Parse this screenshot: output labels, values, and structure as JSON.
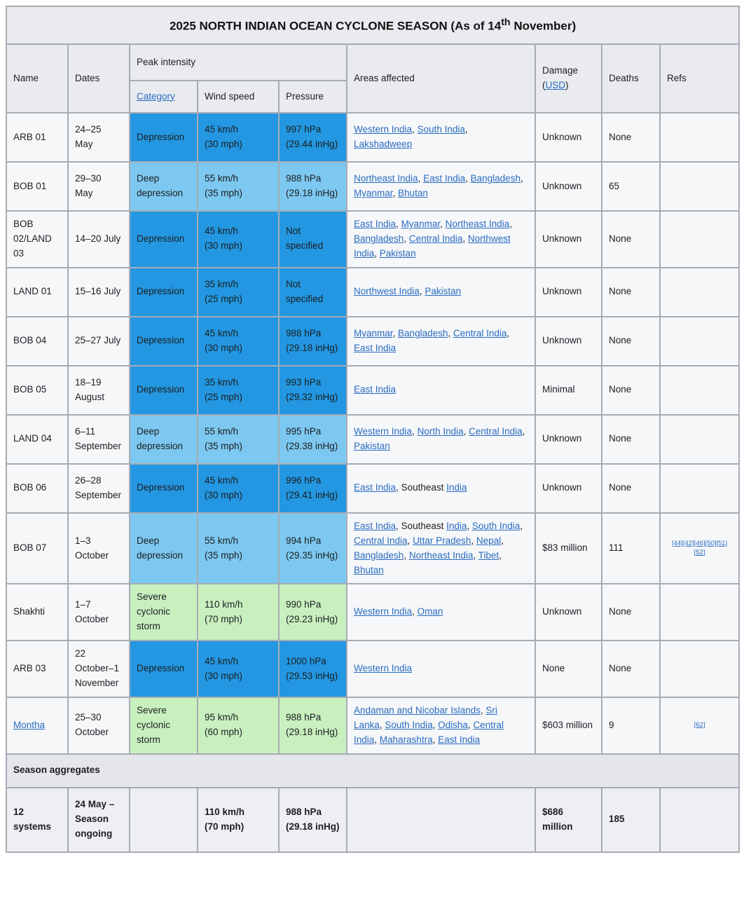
{
  "title": {
    "pre": "2025 NORTH INDIAN OCEAN CYCLONE SEASON (As of 14",
    "sup": "th",
    "post": " November)"
  },
  "header": {
    "name": "Name",
    "dates": "Dates",
    "peak_intensity": "Peak intensity",
    "category": "Category",
    "wind_speed": "Wind speed",
    "pressure": "Pressure",
    "areas": "Areas affected",
    "damage": "Damage",
    "damage_open": "(",
    "usd": "USD",
    "damage_close": ")",
    "deaths": "Deaths",
    "refs": "Refs"
  },
  "colors": {
    "depression": "#2397e1",
    "deep_depression": "#7dc8f0",
    "severe_cyclonic_storm": "#c8f0bf",
    "link": "#2a6cc0",
    "header_bg": "#e9ebef",
    "body_bg": "#f6f7f9",
    "border": "#a7acb4"
  },
  "rows": [
    {
      "name": "ARB 01",
      "name_link": false,
      "dates": "24–25\nMay",
      "category": "Depression",
      "intensity": "depression",
      "wind": "45 km/h\n(30 mph)",
      "pressure": "997 hPa\n(29.44 inHg)",
      "areas": [
        [
          [
            "Western India",
            true
          ]
        ],
        [
          [
            "South India",
            true
          ]
        ],
        [
          [
            "Lakshadweep",
            true
          ]
        ]
      ],
      "damage": "Unknown",
      "deaths": "None",
      "refs": []
    },
    {
      "name": "BOB 01",
      "name_link": false,
      "dates": "29–30\nMay",
      "category": "Deep depression",
      "intensity": "deep_depression",
      "wind": "55 km/h\n(35 mph)",
      "pressure": "988 hPa\n(29.18 inHg)",
      "areas": [
        [
          [
            "Northeast India",
            true
          ]
        ],
        [
          [
            "East India",
            true
          ]
        ],
        [
          [
            "Bangladesh",
            true
          ]
        ],
        [
          [
            "Myanmar",
            true
          ]
        ],
        [
          [
            "Bhutan",
            true
          ]
        ]
      ],
      "damage": "Unknown",
      "deaths": "65",
      "refs": []
    },
    {
      "name": "BOB 02/LAND 03",
      "name_link": false,
      "dates": "14–20 July",
      "category": "Depression",
      "intensity": "depression",
      "wind": "45 km/h\n(30 mph)",
      "pressure": "Not\nspecified",
      "areas": [
        [
          [
            "East India",
            true
          ]
        ],
        [
          [
            "Myanmar",
            true
          ]
        ],
        [
          [
            "Northeast India",
            true
          ]
        ],
        [
          [
            "Bangladesh",
            true
          ]
        ],
        [
          [
            "Central India",
            true
          ]
        ],
        [
          [
            "Northwest India",
            true
          ]
        ],
        [
          [
            "Pakistan",
            true
          ]
        ]
      ],
      "damage": "Unknown",
      "deaths": "None",
      "refs": []
    },
    {
      "name": "LAND 01",
      "name_link": false,
      "dates": "15–16 July",
      "category": "Depression",
      "intensity": "depression",
      "wind": "35 km/h\n(25 mph)",
      "pressure": "Not\nspecified",
      "areas": [
        [
          [
            "Northwest India",
            true
          ]
        ],
        [
          [
            "Pakistan",
            true
          ]
        ]
      ],
      "damage": "Unknown",
      "deaths": "None",
      "refs": []
    },
    {
      "name": "BOB 04",
      "name_link": false,
      "dates": "25–27 July",
      "category": "Depression",
      "intensity": "depression",
      "wind": "45 km/h\n(30 mph)",
      "pressure": "988 hPa\n(29.18 inHg)",
      "areas": [
        [
          [
            "Myanmar",
            true
          ]
        ],
        [
          [
            "Bangladesh",
            true
          ]
        ],
        [
          [
            "Central India",
            true
          ]
        ],
        [
          [
            "East India",
            true
          ]
        ]
      ],
      "damage": "Unknown",
      "deaths": "None",
      "refs": []
    },
    {
      "name": "BOB 05",
      "name_link": false,
      "dates": "18–19\nAugust",
      "category": "Depression",
      "intensity": "depression",
      "wind": "35 km/h\n(25 mph)",
      "pressure": "993 hPa\n(29.32 inHg)",
      "areas": [
        [
          [
            "East India",
            true
          ]
        ]
      ],
      "damage": "Minimal",
      "deaths": "None",
      "refs": []
    },
    {
      "name": "LAND 04",
      "name_link": false,
      "dates": "6–11\nSeptember",
      "category": "Deep depression",
      "intensity": "deep_depression",
      "wind": "55 km/h\n(35 mph)",
      "pressure": "995 hPa\n(29.38 inHg)",
      "areas": [
        [
          [
            "Western India",
            true
          ]
        ],
        [
          [
            "North India",
            true
          ]
        ],
        [
          [
            "Central India",
            true
          ]
        ],
        [
          [
            "Pakistan",
            true
          ]
        ]
      ],
      "damage": "Unknown",
      "deaths": "None",
      "refs": []
    },
    {
      "name": "BOB 06",
      "name_link": false,
      "dates": "26–28\nSeptember",
      "category": "Depression",
      "intensity": "depression",
      "wind": "45 km/h\n(30 mph)",
      "pressure": "996 hPa\n(29.41 inHg)",
      "areas": [
        [
          [
            "East India",
            true
          ]
        ],
        [
          [
            "Southeast ",
            false
          ],
          [
            "India",
            true
          ]
        ]
      ],
      "damage": "Unknown",
      "deaths": "None",
      "refs": []
    },
    {
      "name": "BOB 07",
      "name_link": false,
      "dates": "1–3\nOctober",
      "category": "Deep depression",
      "intensity": "deep_depression",
      "wind": "55 km/h\n(35 mph)",
      "pressure": "994 hPa\n(29.35 inHg)",
      "areas": [
        [
          [
            "East India",
            true
          ]
        ],
        [
          [
            "Southeast ",
            false
          ],
          [
            "India",
            true
          ]
        ],
        [
          [
            "South India",
            true
          ]
        ],
        [
          [
            "Central India",
            true
          ]
        ],
        [
          [
            "Uttar Pradesh",
            true
          ]
        ],
        [
          [
            "Nepal",
            true
          ]
        ],
        [
          [
            "Bangladesh",
            true
          ]
        ],
        [
          [
            "Northeast India",
            true
          ]
        ],
        [
          [
            "Tibet",
            true
          ]
        ],
        [
          [
            "Bhutan",
            true
          ]
        ]
      ],
      "damage": "$83 million",
      "deaths": "111",
      "refs": [
        "[44]",
        "[42]",
        "[46]",
        "[50]",
        "[51]",
        "[52]"
      ]
    },
    {
      "name": "Shakhti",
      "name_link": false,
      "dates": "1–7\nOctober",
      "category": "Severe cyclonic storm",
      "intensity": "severe_cyclonic_storm",
      "wind": "110 km/h\n(70 mph)",
      "pressure": "990 hPa\n(29.23 inHg)",
      "areas": [
        [
          [
            "Western India",
            true
          ]
        ],
        [
          [
            "Oman",
            true
          ]
        ]
      ],
      "damage": "Unknown",
      "deaths": "None",
      "refs": []
    },
    {
      "name": "ARB 03",
      "name_link": false,
      "dates": "22\nOctober–1\nNovember",
      "category": "Depression",
      "intensity": "depression",
      "wind": "45 km/h\n(30 mph)",
      "pressure": "1000 hPa\n(29.53 inHg)",
      "areas": [
        [
          [
            "Western India",
            true
          ]
        ]
      ],
      "damage": "None",
      "deaths": "None",
      "refs": []
    },
    {
      "name": "Montha",
      "name_link": true,
      "dates": "25–30\nOctober",
      "category": "Severe cyclonic storm",
      "intensity": "severe_cyclonic_storm",
      "wind": "95 km/h\n(60 mph)",
      "pressure": "988 hPa\n(29.18 inHg)",
      "areas": [
        [
          [
            "Andaman and Nicobar Islands",
            true
          ]
        ],
        [
          [
            "Sri Lanka",
            true
          ]
        ],
        [
          [
            "South India",
            true
          ]
        ],
        [
          [
            "Odisha",
            true
          ]
        ],
        [
          [
            "Central India",
            true
          ]
        ],
        [
          [
            "Maharashtra",
            true
          ]
        ],
        [
          [
            "East India",
            true
          ]
        ]
      ],
      "damage": "$603 million",
      "deaths": "9",
      "refs": [
        "[62]"
      ]
    }
  ],
  "aggregates": {
    "label": "Season aggregates",
    "systems": "12 systems",
    "dates": "24 May –\nSeason\nongoing",
    "wind": "110 km/h\n(70 mph)",
    "pressure": "988 hPa\n(29.18 inHg)",
    "damage": "$686 million",
    "deaths": "185"
  }
}
